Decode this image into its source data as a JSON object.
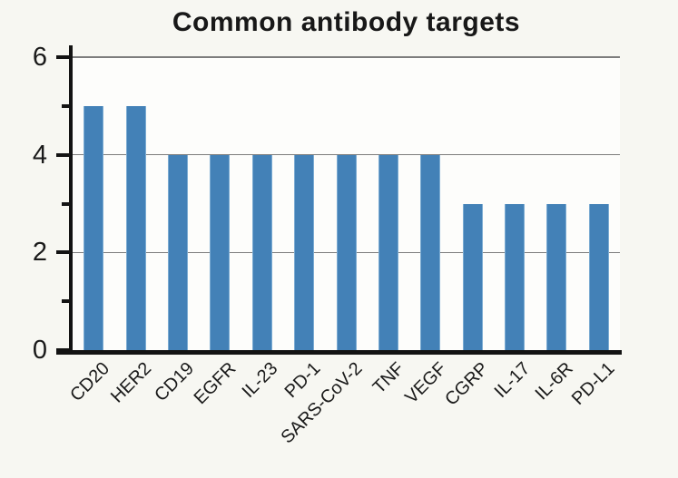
{
  "chart_data": {
    "type": "bar",
    "title": "Common antibody targets",
    "xlabel": "",
    "ylabel": "",
    "categories": [
      "CD20",
      "HER2",
      "CD19",
      "EGFR",
      "IL-23",
      "PD-1",
      "SARS-CoV-2",
      "TNF",
      "VEGF",
      "CGRP",
      "IL-17",
      "IL-6R",
      "PD-L1"
    ],
    "values": [
      5,
      5,
      4,
      4,
      4,
      4,
      4,
      4,
      4,
      3,
      3,
      3,
      3
    ],
    "ylim": [
      0,
      6
    ],
    "yticks_major": [
      0,
      2,
      4,
      6
    ],
    "yticks_minor": [
      1,
      3,
      5
    ],
    "gridlines_at": [
      2,
      4,
      6
    ],
    "grid": "horizontal",
    "legend_position": "none",
    "x_label_rotation_deg": 45,
    "colors": {
      "bar_fill": "#4381b7",
      "bar_edge": "#7babd2",
      "gridline": "#7d7d7d",
      "axis": "#131313",
      "text": "#1a1a1a",
      "background": "#f7f7f2",
      "plot_background": "#fdfdfb"
    }
  }
}
